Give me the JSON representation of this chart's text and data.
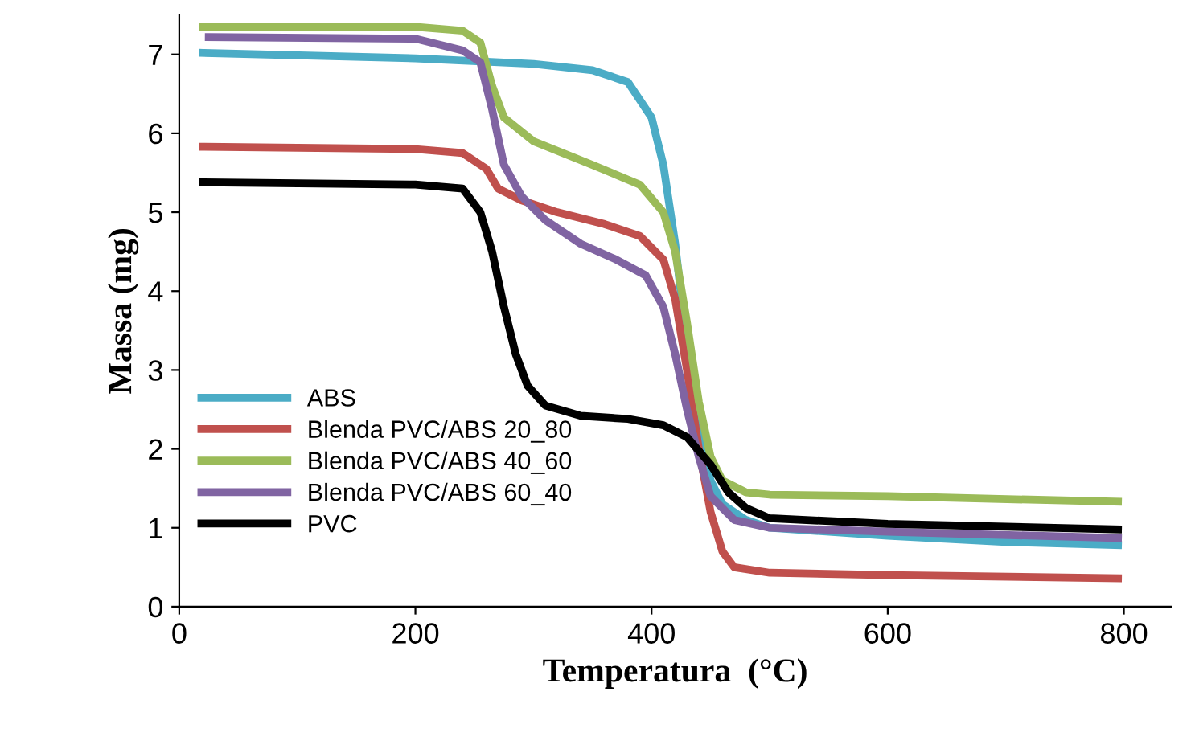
{
  "chart_data": {
    "type": "line",
    "xlabel": "Temperatura  (°C)",
    "ylabel": "Massa (mg)",
    "xlim": [
      0,
      840
    ],
    "xticks": [
      0,
      200,
      400,
      600,
      800
    ],
    "ylim": [
      0,
      7.5
    ],
    "yticks": [
      0,
      1,
      2,
      3,
      4,
      5,
      6,
      7
    ],
    "grid": false,
    "legend": "left",
    "marker": "none",
    "line_style": "solid",
    "series": [
      {
        "name": "ABS",
        "color": "#4bacc6",
        "x": [
          20,
          200,
          300,
          350,
          380,
          400,
          410,
          420,
          430,
          440,
          450,
          460,
          480,
          500,
          600,
          700,
          795
        ],
        "values": [
          7.02,
          6.95,
          6.88,
          6.8,
          6.65,
          6.2,
          5.6,
          4.6,
          3.3,
          2.2,
          1.6,
          1.3,
          1.1,
          1.0,
          0.9,
          0.82,
          0.78
        ]
      },
      {
        "name": "Blenda PVC/ABS 20_80",
        "color": "#c0504d",
        "x": [
          20,
          200,
          240,
          260,
          270,
          290,
          320,
          360,
          390,
          410,
          420,
          430,
          440,
          450,
          460,
          470,
          500,
          600,
          795
        ],
        "values": [
          5.83,
          5.8,
          5.75,
          5.55,
          5.3,
          5.15,
          5.0,
          4.85,
          4.7,
          4.4,
          3.9,
          3.0,
          2.0,
          1.2,
          0.7,
          0.5,
          0.43,
          0.4,
          0.36
        ]
      },
      {
        "name": "Blenda PVC/ABS 40_60",
        "color": "#9bbb59",
        "x": [
          20,
          200,
          240,
          255,
          265,
          275,
          300,
          350,
          390,
          410,
          420,
          430,
          440,
          450,
          460,
          480,
          500,
          600,
          795
        ],
        "values": [
          7.35,
          7.35,
          7.3,
          7.15,
          6.6,
          6.2,
          5.9,
          5.6,
          5.35,
          5.0,
          4.5,
          3.6,
          2.6,
          1.9,
          1.6,
          1.45,
          1.42,
          1.4,
          1.33
        ]
      },
      {
        "name": "Blenda PVC/ABS 60_40",
        "color": "#8064a2",
        "x": [
          25,
          200,
          240,
          255,
          265,
          275,
          290,
          310,
          340,
          370,
          395,
          410,
          420,
          430,
          440,
          450,
          470,
          500,
          600,
          795
        ],
        "values": [
          7.22,
          7.2,
          7.05,
          6.9,
          6.3,
          5.6,
          5.2,
          4.9,
          4.6,
          4.4,
          4.2,
          3.8,
          3.2,
          2.5,
          1.9,
          1.4,
          1.1,
          1.0,
          0.95,
          0.87
        ]
      },
      {
        "name": "PVC",
        "color": "#000000",
        "x": [
          20,
          200,
          240,
          255,
          265,
          275,
          285,
          295,
          310,
          340,
          380,
          410,
          430,
          450,
          465,
          480,
          500,
          600,
          795
        ],
        "values": [
          5.38,
          5.35,
          5.3,
          5.0,
          4.5,
          3.8,
          3.2,
          2.8,
          2.55,
          2.42,
          2.38,
          2.3,
          2.15,
          1.8,
          1.45,
          1.25,
          1.12,
          1.05,
          0.98
        ]
      }
    ]
  }
}
